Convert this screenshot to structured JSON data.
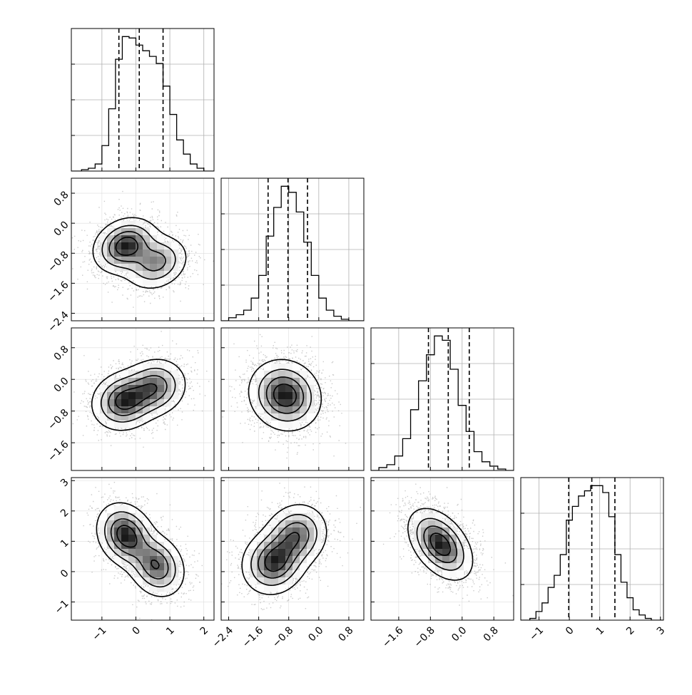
{
  "chart_data": {
    "type": "corner",
    "parameters": 4,
    "dim_ranges": [
      [
        -1.9,
        2.3
      ],
      [
        -2.6,
        1.2
      ],
      [
        -2.3,
        1.3
      ],
      [
        -1.6,
        3.1
      ]
    ],
    "diag_ticks": [
      {
        "values": [
          -1,
          0,
          1,
          2
        ],
        "labels": [
          "−1",
          "0",
          "1",
          "2"
        ]
      },
      {
        "values": [
          -2.4,
          -1.6,
          -0.8,
          0.0,
          0.8
        ],
        "labels": [
          "−2.4",
          "−1.6",
          "−0.8",
          "0.0",
          "0.8"
        ]
      },
      {
        "values": [
          -1.6,
          -0.8,
          0.0,
          0.8
        ],
        "labels": [
          "−1.6",
          "−0.8",
          "0.0",
          "0.8"
        ]
      },
      {
        "values": [
          -1,
          0,
          1,
          2,
          3
        ],
        "labels": [
          "−1",
          "0",
          "1",
          "2",
          "3"
        ]
      }
    ],
    "quantiles": [
      [
        -0.5,
        0.1,
        0.8
      ],
      [
        -1.35,
        -0.82,
        -0.3
      ],
      [
        -0.85,
        -0.35,
        0.18
      ],
      [
        -0.02,
        0.74,
        1.5
      ]
    ],
    "histograms": [
      {
        "bin_edges": [
          -1.9,
          -1.6,
          -1.4,
          -1.2,
          -1.0,
          -0.8,
          -0.6,
          -0.4,
          -0.2,
          0.0,
          0.2,
          0.4,
          0.6,
          0.8,
          1.0,
          1.2,
          1.4,
          1.6,
          1.8,
          2.0,
          2.3
        ],
        "counts": [
          0.0,
          0.01,
          0.02,
          0.05,
          0.18,
          0.44,
          0.79,
          0.95,
          0.94,
          0.89,
          0.85,
          0.81,
          0.76,
          0.6,
          0.4,
          0.22,
          0.12,
          0.05,
          0.02,
          0.0
        ]
      },
      {
        "bin_edges": [
          -2.6,
          -2.4,
          -2.2,
          -2.0,
          -1.8,
          -1.6,
          -1.4,
          -1.2,
          -1.0,
          -0.8,
          -0.6,
          -0.4,
          -0.2,
          0.0,
          0.2,
          0.4,
          0.6,
          0.8,
          1.0,
          1.2
        ],
        "counts": [
          0.0,
          0.02,
          0.04,
          0.07,
          0.15,
          0.3,
          0.56,
          0.75,
          0.89,
          0.85,
          0.72,
          0.52,
          0.3,
          0.15,
          0.07,
          0.03,
          0.01,
          0.0,
          0.0
        ]
      },
      {
        "bin_edges": [
          -2.3,
          -2.1,
          -1.9,
          -1.7,
          -1.5,
          -1.3,
          -1.1,
          -0.9,
          -0.7,
          -0.5,
          -0.3,
          -0.1,
          0.1,
          0.3,
          0.5,
          0.7,
          0.9,
          1.1,
          1.3
        ],
        "counts": [
          0.0,
          0.02,
          0.04,
          0.1,
          0.22,
          0.42,
          0.62,
          0.8,
          0.93,
          0.9,
          0.7,
          0.45,
          0.27,
          0.13,
          0.06,
          0.03,
          0.01,
          0.0
        ]
      },
      {
        "bin_edges": [
          -1.6,
          -1.3,
          -1.1,
          -0.9,
          -0.7,
          -0.5,
          -0.3,
          -0.1,
          0.1,
          0.3,
          0.5,
          0.7,
          0.9,
          1.1,
          1.3,
          1.5,
          1.7,
          1.9,
          2.1,
          2.3,
          2.5,
          2.7,
          3.1
        ],
        "counts": [
          0.0,
          0.01,
          0.05,
          0.1,
          0.19,
          0.26,
          0.38,
          0.58,
          0.66,
          0.72,
          0.75,
          0.78,
          0.78,
          0.74,
          0.6,
          0.38,
          0.22,
          0.13,
          0.06,
          0.03,
          0.01,
          0.0
        ]
      }
    ],
    "pair_modes": [
      {
        "i": 1,
        "j": 0,
        "modes": [
          {
            "x": -0.3,
            "y": -0.6,
            "sx": 0.45,
            "sy": 0.35,
            "r": 0.2,
            "w": 0.6
          },
          {
            "x": 0.6,
            "y": -1.05,
            "sx": 0.45,
            "sy": 0.35,
            "r": 0.2,
            "w": 0.4
          }
        ]
      },
      {
        "i": 2,
        "j": 0,
        "modes": [
          {
            "x": -0.35,
            "y": -0.55,
            "sx": 0.45,
            "sy": 0.35,
            "r": 0.1,
            "w": 0.55
          },
          {
            "x": 0.55,
            "y": -0.2,
            "sx": 0.45,
            "sy": 0.35,
            "r": 0.1,
            "w": 0.45
          }
        ]
      },
      {
        "i": 3,
        "j": 0,
        "modes": [
          {
            "x": -0.3,
            "y": 1.2,
            "sx": 0.4,
            "sy": 0.5,
            "r": -0.2,
            "w": 0.55
          },
          {
            "x": 0.6,
            "y": 0.2,
            "sx": 0.4,
            "sy": 0.5,
            "r": -0.2,
            "w": 0.45
          }
        ]
      },
      {
        "i": 2,
        "j": 1,
        "modes": [
          {
            "x": -0.9,
            "y": -0.4,
            "sx": 0.45,
            "sy": 0.42,
            "r": -0.1,
            "w": 1.0
          }
        ]
      },
      {
        "i": 3,
        "j": 1,
        "modes": [
          {
            "x": -1.2,
            "y": 0.3,
            "sx": 0.4,
            "sy": 0.5,
            "r": 0.1,
            "w": 0.55
          },
          {
            "x": -0.6,
            "y": 1.2,
            "sx": 0.4,
            "sy": 0.5,
            "r": 0.1,
            "w": 0.45
          }
        ]
      },
      {
        "i": 3,
        "j": 2,
        "modes": [
          {
            "x": -0.55,
            "y": 0.9,
            "sx": 0.38,
            "sy": 0.55,
            "r": -0.45,
            "w": 1.0
          }
        ]
      }
    ],
    "contour_levels": [
      0.9,
      0.7,
      0.45,
      0.2
    ],
    "grid": true,
    "title": "",
    "xlabel": "",
    "ylabel": ""
  }
}
